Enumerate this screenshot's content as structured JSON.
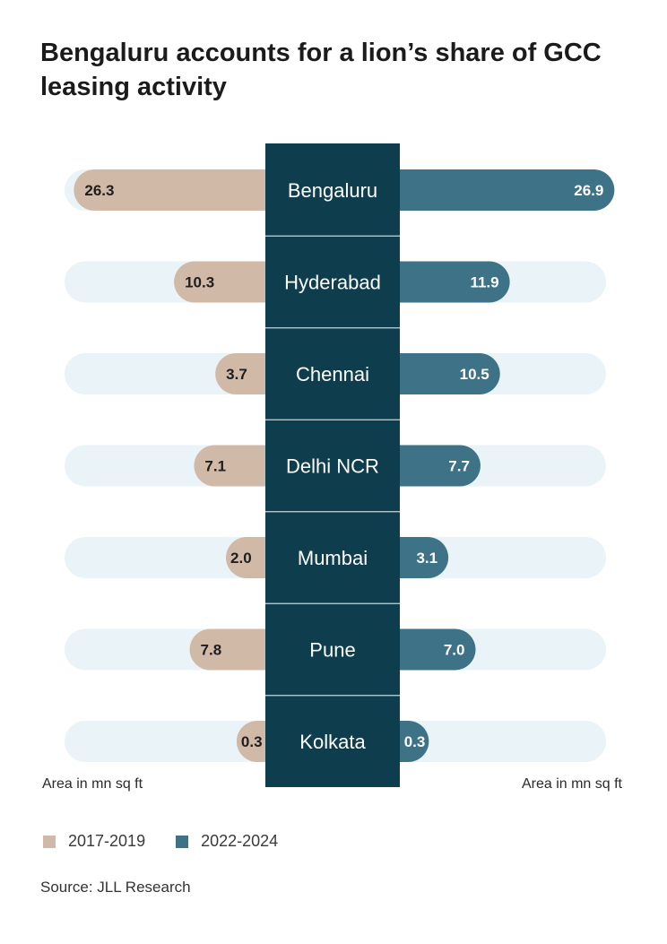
{
  "title": "Bengaluru accounts for a lion’s share of GCC leasing activity",
  "axis_note_left": "Area in mn sq ft",
  "axis_note_right": "Area in mn sq ft",
  "source": "Source: JLL Research",
  "colors": {
    "series_2017_2019": "#d1b9a8",
    "series_2022_2024": "#3e7286",
    "center_column": "#0e3d4e",
    "track": "#eaf4f8"
  },
  "chart_data": {
    "type": "bar",
    "layout": "butterfly",
    "categories": [
      "Bengaluru",
      "Hyderabad",
      "Chennai",
      "Delhi NCR",
      "Mumbai",
      "Pune",
      "Kolkata"
    ],
    "series": [
      {
        "name": "2017-2019",
        "side": "left",
        "values": [
          26.3,
          10.3,
          3.7,
          7.1,
          2.0,
          7.8,
          0.3
        ],
        "labels": [
          "26.3",
          "10.3",
          "3.7",
          "7.1",
          "2.0",
          "7.8",
          "0.3"
        ]
      },
      {
        "name": "2022-2024",
        "side": "right",
        "values": [
          26.9,
          11.9,
          10.5,
          7.7,
          3.1,
          7.0,
          0.3
        ],
        "labels": [
          "26.9",
          "11.9",
          "10.5",
          "7.7",
          "3.1",
          "7.0",
          "0.3"
        ]
      }
    ],
    "unit": "mn sq ft",
    "legend_position": "bottom-left"
  }
}
